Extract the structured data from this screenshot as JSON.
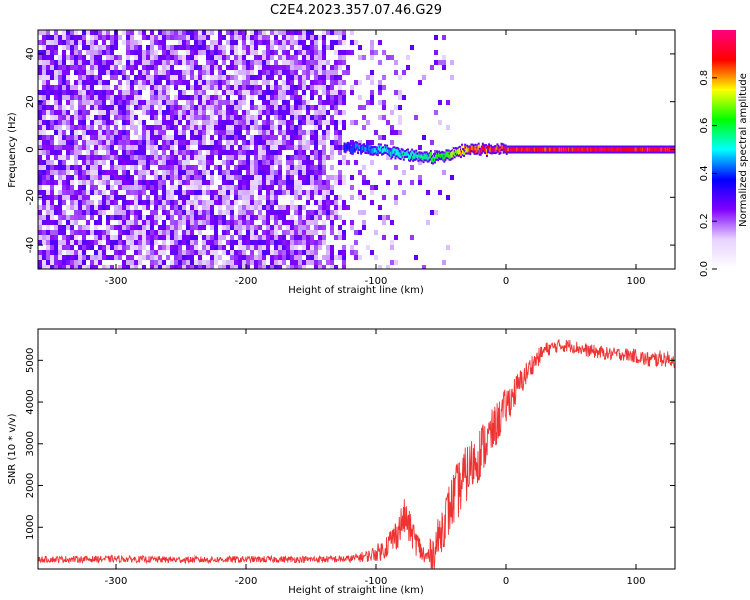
{
  "figure": {
    "title": "C2E4.2023.357.07.46.G29"
  },
  "chart_data": [
    {
      "type": "heatmap",
      "xlabel": "Height of straight line (km)",
      "ylabel": "Frequency (Hz)",
      "xlim": [
        -360,
        130
      ],
      "ylim": [
        -50,
        50
      ],
      "xticks": [
        -300,
        -200,
        -100,
        0,
        100
      ],
      "yticks": [
        -40,
        -20,
        0,
        20,
        40
      ],
      "colorbar": {
        "label": "Normalized spectral amplitude",
        "range": [
          0,
          1
        ],
        "ticks": [
          "0.0",
          "0.2",
          "0.4",
          "0.6",
          "0.8"
        ],
        "colormap": [
          "#ffffff",
          "#e6d2ff",
          "#8000ff",
          "#0000ff",
          "#00ffff",
          "#00ff00",
          "#ffff00",
          "#ff0000",
          "#ff0080"
        ]
      },
      "features": {
        "noise_region_x": [
          -360,
          -125
        ],
        "noise_amplitude": 0.15,
        "carrier_onset_x": -125,
        "carrier_line": {
          "x": [
            -125,
            -110,
            -95,
            -85,
            -75,
            -65,
            -55,
            -45,
            -35,
            -20,
            0,
            130
          ],
          "freq_hz": [
            1,
            0.5,
            -0.5,
            -1.5,
            -2.5,
            -3,
            -3.5,
            -2.5,
            -0.5,
            0,
            0,
            0
          ],
          "amplitude": [
            0.3,
            0.35,
            0.4,
            0.4,
            0.45,
            0.5,
            0.55,
            0.6,
            0.7,
            0.85,
            0.9,
            0.9
          ]
        }
      }
    },
    {
      "type": "line",
      "xlabel": "Height of straight line (km)",
      "ylabel": "SNR (10 * v/v)",
      "xlim": [
        -360,
        130
      ],
      "ylim": [
        0,
        5750
      ],
      "xticks": [
        -300,
        -200,
        -100,
        0,
        100
      ],
      "yticks": [
        1000,
        2000,
        3000,
        4000,
        5000
      ],
      "series": [
        {
          "color": "#ee3333",
          "x": [
            -360,
            -300,
            -250,
            -200,
            -150,
            -120,
            -105,
            -95,
            -85,
            -78,
            -70,
            -62,
            -55,
            -48,
            -40,
            -30,
            -20,
            -10,
            0,
            10,
            20,
            30,
            40,
            50,
            60,
            70,
            80,
            90,
            100,
            110,
            120,
            130
          ],
          "y": [
            230,
            240,
            220,
            230,
            230,
            240,
            320,
            450,
            800,
            1250,
            700,
            250,
            450,
            1100,
            1700,
            2300,
            2800,
            3300,
            3900,
            4400,
            4900,
            5250,
            5350,
            5350,
            5250,
            5200,
            5150,
            5150,
            5100,
            5000,
            5050,
            5000
          ],
          "noise_amplitude": [
            80,
            80,
            80,
            80,
            80,
            90,
            150,
            250,
            400,
            450,
            350,
            250,
            450,
            600,
            700,
            700,
            650,
            550,
            450,
            350,
            250,
            180,
            160,
            160,
            160,
            160,
            160,
            160,
            170,
            200,
            200,
            180
          ]
        }
      ]
    }
  ]
}
